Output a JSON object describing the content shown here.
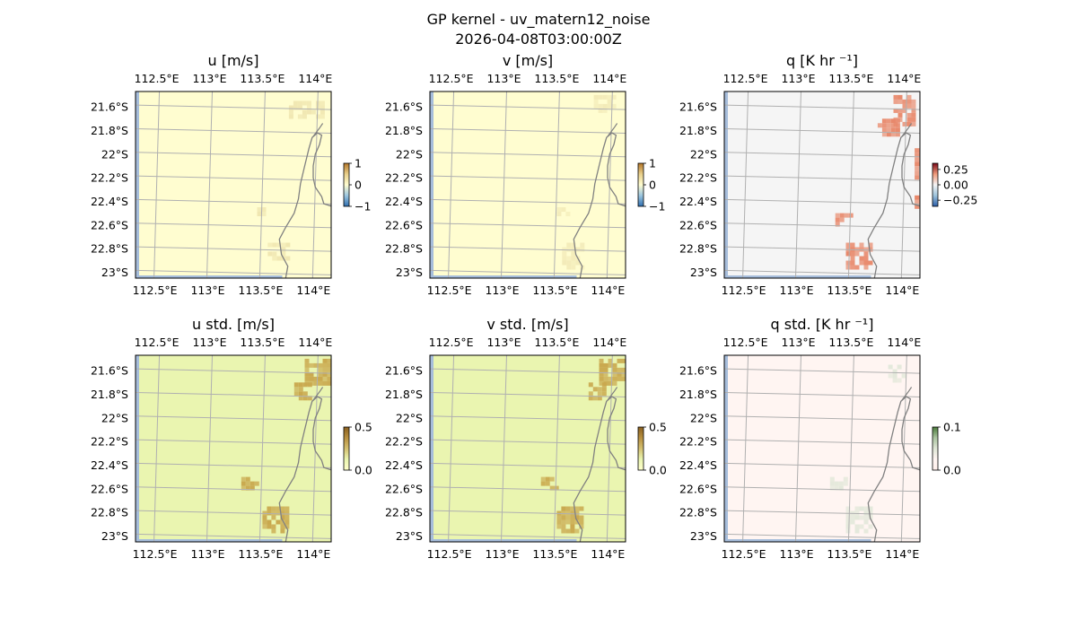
{
  "figure": {
    "title_line1": "GP kernel - uv_matern12_noise",
    "title_line2": "2026-04-08T03:00:00Z"
  },
  "chart_data": [
    {
      "type": "heatmap",
      "title": "u [m/s]",
      "xticks": [
        "112.5°E",
        "113°E",
        "113.5°E",
        "114°E"
      ],
      "yticks": [
        "21.6°S",
        "21.8°S",
        "22°S",
        "22.2°S",
        "22.4°S",
        "22.6°S",
        "22.8°S",
        "23°S"
      ],
      "colorbar": {
        "ticks": [
          "1",
          "0",
          "−1"
        ],
        "range": [
          -1,
          1
        ]
      },
      "base_color": "#fffdd0",
      "patch_color": "#f0e6b0",
      "colormap": [
        "#2f6fb0",
        "#9cc6df",
        "#fffdd0",
        "#e8cf8a",
        "#b5782a"
      ],
      "patches": [
        {
          "lon": [
            113.75,
            114.05
          ],
          "lat": [
            -21.7,
            -21.55
          ],
          "value": 0.08
        },
        {
          "lon": [
            113.55,
            113.75
          ],
          "lat": [
            -22.9,
            -22.75
          ],
          "value": 0.12
        },
        {
          "lon": [
            113.45,
            113.55
          ],
          "lat": [
            -22.5,
            -22.45
          ],
          "value": 0.05
        }
      ]
    },
    {
      "type": "heatmap",
      "title": "v [m/s]",
      "xticks": [
        "112.5°E",
        "113°E",
        "113.5°E",
        "114°E"
      ],
      "yticks": [
        "21.6°S",
        "21.8°S",
        "22°S",
        "22.2°S",
        "22.4°S",
        "22.6°S",
        "22.8°S",
        "23°S"
      ],
      "colorbar": {
        "ticks": [
          "1",
          "0",
          "−1"
        ],
        "range": [
          -1,
          1
        ]
      },
      "base_color": "#fffdd0",
      "patch_color": "#f3ebb8",
      "colormap": [
        "#2f6fb0",
        "#9cc6df",
        "#fffdd0",
        "#e8cf8a",
        "#b5782a"
      ],
      "patches": [
        {
          "lon": [
            113.85,
            114.05
          ],
          "lat": [
            -21.65,
            -21.5
          ],
          "value": 0.06
        },
        {
          "lon": [
            113.55,
            113.75
          ],
          "lat": [
            -22.95,
            -22.75
          ],
          "value": 0.1
        },
        {
          "lon": [
            113.5,
            113.6
          ],
          "lat": [
            -22.5,
            -22.45
          ],
          "value": 0.05
        }
      ]
    },
    {
      "type": "heatmap",
      "title": "q [K hr ⁻¹]",
      "xticks": [
        "112.5°E",
        "113°E",
        "113.5°E",
        "114°E"
      ],
      "yticks": [
        "21.6°S",
        "21.8°S",
        "22°S",
        "22.2°S",
        "22.4°S",
        "22.6°S",
        "22.8°S",
        "23°S"
      ],
      "colorbar": {
        "ticks": [
          "0.25",
          "0.00",
          "−0.25"
        ],
        "range": [
          -0.35,
          0.35
        ]
      },
      "base_color": "#f5f5f5",
      "patch_color": "#e8886a",
      "colormap": [
        "#2b5da8",
        "#9ec4dc",
        "#f5f5f5",
        "#ef9a7a",
        "#7a0a1a"
      ],
      "patches": [
        {
          "lon": [
            113.9,
            114.1
          ],
          "lat": [
            -21.75,
            -21.5
          ],
          "value": 0.22
        },
        {
          "lon": [
            113.75,
            113.95
          ],
          "lat": [
            -21.85,
            -21.7
          ],
          "value": 0.12
        },
        {
          "lon": [
            113.35,
            113.5
          ],
          "lat": [
            -22.6,
            -22.5
          ],
          "value": 0.14
        },
        {
          "lon": [
            113.45,
            113.7
          ],
          "lat": [
            -22.95,
            -22.75
          ],
          "value": 0.16
        },
        {
          "lon": [
            114.1,
            114.15
          ],
          "lat": [
            -22.2,
            -21.95
          ],
          "value": 0.28
        },
        {
          "lon": [
            114.1,
            114.15
          ],
          "lat": [
            -22.45,
            -22.35
          ],
          "value": 0.34
        }
      ]
    },
    {
      "type": "heatmap",
      "title": "u std. [m/s]",
      "xticks": [
        "112.5°E",
        "113°E",
        "113.5°E",
        "114°E"
      ],
      "yticks": [
        "21.6°S",
        "21.8°S",
        "22°S",
        "22.2°S",
        "22.4°S",
        "22.6°S",
        "22.8°S",
        "23°S"
      ],
      "colorbar": {
        "ticks": [
          "0.5",
          "0.0"
        ],
        "range": [
          0,
          0.5
        ]
      },
      "base_color": "#eaf5b0",
      "patch_color": "#c9a84e",
      "colormap": [
        "#ffffcc",
        "#eaf5b0",
        "#d4c070",
        "#b89040",
        "#8a6020"
      ],
      "patches": [
        {
          "lon": [
            113.9,
            114.15
          ],
          "lat": [
            -21.7,
            -21.5
          ],
          "value": 0.3
        },
        {
          "lon": [
            113.8,
            113.95
          ],
          "lat": [
            -21.85,
            -21.7
          ],
          "value": 0.28
        },
        {
          "lon": [
            113.5,
            113.75
          ],
          "lat": [
            -22.95,
            -22.75
          ],
          "value": 0.3
        },
        {
          "lon": [
            113.3,
            113.45
          ],
          "lat": [
            -22.6,
            -22.5
          ],
          "value": 0.27
        }
      ]
    },
    {
      "type": "heatmap",
      "title": "v std. [m/s]",
      "xticks": [
        "112.5°E",
        "113°E",
        "113.5°E",
        "114°E"
      ],
      "yticks": [
        "21.6°S",
        "21.8°S",
        "22°S",
        "22.2°S",
        "22.4°S",
        "22.6°S",
        "22.8°S",
        "23°S"
      ],
      "colorbar": {
        "ticks": [
          "0.5",
          "0.0"
        ],
        "range": [
          0,
          0.5
        ]
      },
      "base_color": "#eaf5b0",
      "patch_color": "#c9a84e",
      "colormap": [
        "#ffffcc",
        "#eaf5b0",
        "#d4c070",
        "#b89040",
        "#8a6020"
      ],
      "patches": [
        {
          "lon": [
            113.9,
            114.15
          ],
          "lat": [
            -21.7,
            -21.5
          ],
          "value": 0.3
        },
        {
          "lon": [
            113.8,
            113.95
          ],
          "lat": [
            -21.85,
            -21.7
          ],
          "value": 0.28
        },
        {
          "lon": [
            113.5,
            113.75
          ],
          "lat": [
            -22.95,
            -22.75
          ],
          "value": 0.3
        },
        {
          "lon": [
            113.35,
            113.5
          ],
          "lat": [
            -22.6,
            -22.5
          ],
          "value": 0.27
        }
      ]
    },
    {
      "type": "heatmap",
      "title": "q std. [K hr ⁻¹]",
      "xticks": [
        "112.5°E",
        "113°E",
        "113.5°E",
        "114°E"
      ],
      "yticks": [
        "21.6°S",
        "21.8°S",
        "22°S",
        "22.2°S",
        "22.4°S",
        "22.6°S",
        "22.8°S",
        "23°S"
      ],
      "colorbar": {
        "ticks": [
          "0.1",
          "0.0"
        ],
        "range": [
          0,
          0.1
        ]
      },
      "base_color": "#fff5f2",
      "patch_color": "#e3e8da",
      "colormap": [
        "#fff0ec",
        "#fff5f2",
        "#dfe6d6",
        "#aac4a0",
        "#4a7a3a"
      ],
      "patches": [
        {
          "lon": [
            113.45,
            113.7
          ],
          "lat": [
            -22.95,
            -22.75
          ],
          "value": 0.03
        },
        {
          "lon": [
            113.3,
            113.45
          ],
          "lat": [
            -22.6,
            -22.5
          ],
          "value": 0.025
        },
        {
          "lon": [
            113.85,
            114.0
          ],
          "lat": [
            -21.7,
            -21.55
          ],
          "value": 0.02
        }
      ]
    }
  ]
}
